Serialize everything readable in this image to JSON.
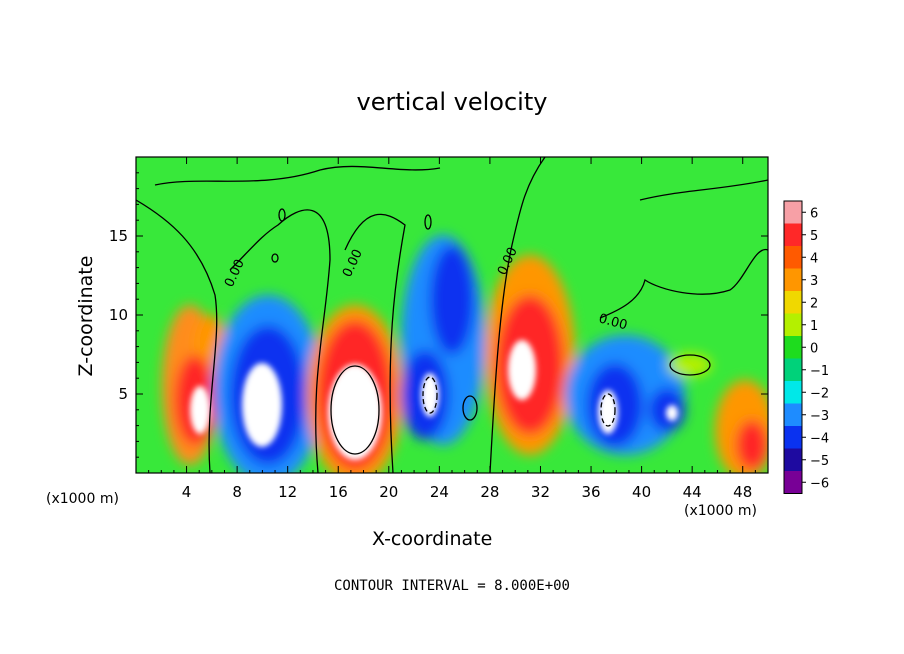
{
  "chart_data": {
    "type": "heatmap",
    "title": "vertical velocity",
    "xlabel": "X-coordinate",
    "ylabel": "Z-coordinate",
    "x_unit_left": "(x1000 m)",
    "x_unit_right": "(x1000 m)",
    "xlim": [
      0,
      50
    ],
    "ylim": [
      0,
      20
    ],
    "x_ticks": [
      4,
      8,
      12,
      16,
      20,
      24,
      28,
      32,
      36,
      40,
      44,
      48
    ],
    "y_ticks": [
      5,
      10,
      15
    ],
    "contour_label": "0.00",
    "contour_interval_text": "CONTOUR INTERVAL = 8.000E+00",
    "colorbar": {
      "levels": [
        6,
        5,
        4,
        3,
        2,
        1,
        0,
        -1,
        -2,
        -3,
        -4,
        -5,
        -6
      ],
      "tick_labels": [
        "6",
        "5",
        "4",
        "3",
        "2",
        "1",
        "0",
        "−1",
        "−2",
        "−3",
        "−4",
        "−5",
        "−6"
      ],
      "colors": [
        "#f7a0a6",
        "#ff2828",
        "#ff5a00",
        "#ff9600",
        "#f0d800",
        "#b4f000",
        "#1edc1e",
        "#00d27a",
        "#00e8e8",
        "#1e8cff",
        "#0a32f0",
        "#1e0aa0",
        "#780096"
      ],
      "background_color": "#38e83a"
    },
    "cells": [
      {
        "x": 4.5,
        "y": 4.5,
        "value": 6
      },
      {
        "x": 5.2,
        "y": 8.0,
        "value": 3
      },
      {
        "x": 10.8,
        "y": 5.0,
        "value": -6
      },
      {
        "x": 17.5,
        "y": 4.7,
        "value": 6
      },
      {
        "x": 23.0,
        "y": 5.5,
        "value": -5
      },
      {
        "x": 25.5,
        "y": 10.0,
        "value": -5
      },
      {
        "x": 31.0,
        "y": 6.5,
        "value": 6
      },
      {
        "x": 37.5,
        "y": 4.0,
        "value": -5
      },
      {
        "x": 48.0,
        "y": 2.5,
        "value": 4
      }
    ]
  }
}
